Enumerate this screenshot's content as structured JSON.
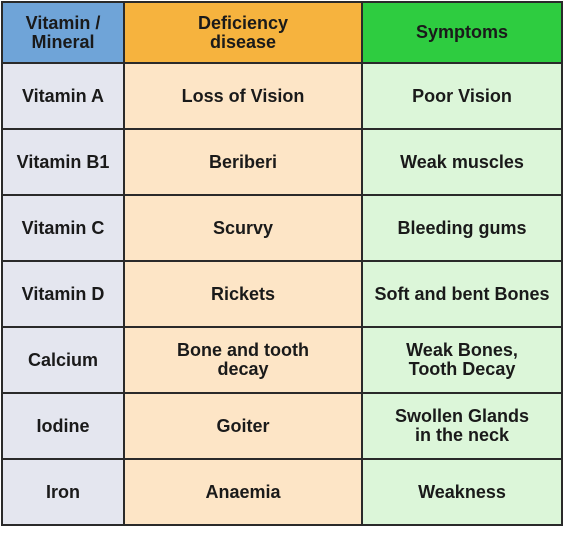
{
  "table": {
    "headers": [
      "Vitamin /\nMineral",
      "Deficiency\ndisease",
      "Symptoms"
    ],
    "rows": [
      [
        "Vitamin A",
        "Loss of Vision",
        "Poor Vision"
      ],
      [
        "Vitamin B1",
        "Beriberi",
        "Weak muscles"
      ],
      [
        "Vitamin C",
        "Scurvy",
        "Bleeding gums"
      ],
      [
        "Vitamin D",
        "Rickets",
        "Soft and bent Bones"
      ],
      [
        "Calcium",
        "Bone and tooth\ndecay",
        "Weak Bones,\nTooth Decay"
      ],
      [
        "Iodine",
        "Goiter",
        "Swollen Glands\nin the neck"
      ],
      [
        "Iron",
        "Anaemia",
        "Weakness"
      ]
    ]
  },
  "colors": {
    "header_nutrient": "#6fa4d8",
    "header_disease": "#f6b33e",
    "header_symptoms": "#2ecc40",
    "cell_nutrient": "#e4e6ef",
    "cell_disease": "#fde5c6",
    "cell_symptoms": "#dcf6d9"
  }
}
